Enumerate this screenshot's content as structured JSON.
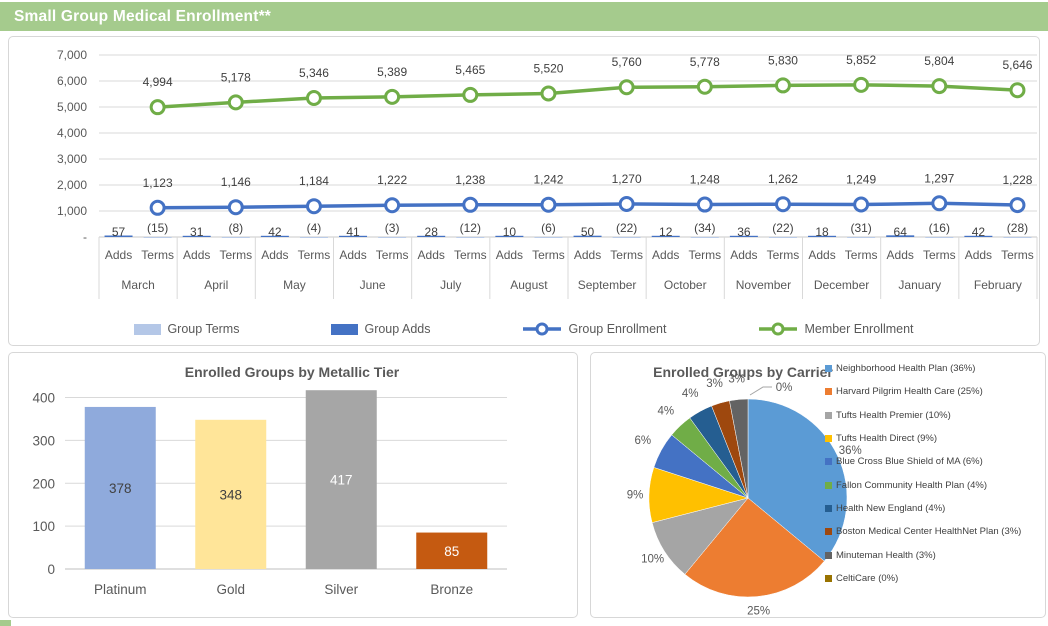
{
  "header": {
    "title": "Small Group Medical Enrollment**",
    "accent_color": "#A5CB8D"
  },
  "chart_data": [
    {
      "id": "enrollment",
      "type": "line+bar",
      "title": "",
      "categories": [
        "March",
        "April",
        "May",
        "June",
        "July",
        "August",
        "September",
        "October",
        "November",
        "December",
        "January",
        "February"
      ],
      "sub_categories": [
        "Adds",
        "Terms"
      ],
      "series": [
        {
          "name": "Group Terms",
          "type": "bar",
          "color": "#B4C7E7",
          "values": [
            -15,
            -8,
            -4,
            -3,
            -12,
            -6,
            -22,
            -34,
            -22,
            -31,
            -16,
            -28
          ],
          "labels": [
            "(15)",
            "(8)",
            "(4)",
            "(3)",
            "(12)",
            "(6)",
            "(22)",
            "(34)",
            "(22)",
            "(31)",
            "(16)",
            "(28)"
          ]
        },
        {
          "name": "Group Adds",
          "type": "bar",
          "color": "#4472C4",
          "values": [
            57,
            31,
            42,
            41,
            28,
            10,
            50,
            12,
            36,
            18,
            64,
            42
          ],
          "labels": [
            "57",
            "31",
            "42",
            "41",
            "28",
            "10",
            "50",
            "12",
            "36",
            "18",
            "64",
            "42"
          ]
        },
        {
          "name": "Group Enrollment",
          "type": "line",
          "color": "#4472C4",
          "values": [
            1123,
            1146,
            1184,
            1222,
            1238,
            1242,
            1270,
            1248,
            1262,
            1249,
            1297,
            1228
          ],
          "labels": [
            "1,123",
            "1,146",
            "1,184",
            "1,222",
            "1,238",
            "1,242",
            "1,270",
            "1,248",
            "1,262",
            "1,249",
            "1,297",
            "1,228"
          ]
        },
        {
          "name": "Member Enrollment",
          "type": "line",
          "color": "#70AD47",
          "values": [
            4994,
            5178,
            5346,
            5389,
            5465,
            5520,
            5760,
            5778,
            5830,
            5852,
            5804,
            5646
          ],
          "labels": [
            "4,994",
            "5,178",
            "5,346",
            "5,389",
            "5,465",
            "5,520",
            "5,760",
            "5,778",
            "5,830",
            "5,852",
            "5,804",
            "5,646"
          ]
        }
      ],
      "y_ticks": [
        {
          "value": 0,
          "label": "-"
        },
        {
          "value": 1000,
          "label": "1,000"
        },
        {
          "value": 2000,
          "label": "2,000"
        },
        {
          "value": 3000,
          "label": "3,000"
        },
        {
          "value": 4000,
          "label": "4,000"
        },
        {
          "value": 5000,
          "label": "5,000"
        },
        {
          "value": 6000,
          "label": "6,000"
        },
        {
          "value": 7000,
          "label": "7,000"
        }
      ],
      "ylim": [
        0,
        7000
      ],
      "grid": true,
      "legend_position": "bottom"
    },
    {
      "id": "tier",
      "type": "bar",
      "title": "Enrolled Groups by Metallic Tier",
      "categories": [
        "Platinum",
        "Gold",
        "Silver",
        "Bronze"
      ],
      "values": [
        378,
        348,
        417,
        85
      ],
      "labels": [
        "378",
        "348",
        "417",
        "85"
      ],
      "colors": [
        "#8FAADC",
        "#FFE599",
        "#A6A6A6",
        "#C55A11"
      ],
      "value_label_colors": [
        "#404040",
        "#404040",
        "#FFFFFF",
        "#FFFFFF"
      ],
      "y_ticks": [
        0,
        100,
        200,
        300,
        400
      ],
      "ylim": [
        0,
        400
      ],
      "grid": true,
      "xlabel": "",
      "ylabel": ""
    },
    {
      "id": "carrier",
      "type": "pie",
      "title": "Enrolled Groups by Carrier",
      "legend_position": "right",
      "slices": [
        {
          "label": "Neighborhood Health Plan (36%)",
          "pct": 36,
          "color": "#5B9BD5",
          "pie_label": "36%"
        },
        {
          "label": "Harvard Pilgrim Health Care (25%)",
          "pct": 25,
          "color": "#ED7D31",
          "pie_label": "25%"
        },
        {
          "label": "Tufts Health Premier (10%)",
          "pct": 10,
          "color": "#A5A5A5",
          "pie_label": "10%"
        },
        {
          "label": "Tufts Health Direct (9%)",
          "pct": 9,
          "color": "#FFC000",
          "pie_label": "9%"
        },
        {
          "label": "Blue Cross Blue Shield of MA (6%)",
          "pct": 6,
          "color": "#4472C4",
          "pie_label": "6%"
        },
        {
          "label": "Fallon Community Health Plan (4%)",
          "pct": 4,
          "color": "#70AD47",
          "pie_label": "4%"
        },
        {
          "label": "Health New England (4%)",
          "pct": 4,
          "color": "#255E91",
          "pie_label": "4%"
        },
        {
          "label": "Boston Medical Center HealthNet Plan (3%)",
          "pct": 3,
          "color": "#9E480E",
          "pie_label": "3%"
        },
        {
          "label": "Minuteman Health (3%)",
          "pct": 3,
          "color": "#636363",
          "pie_label": "3%"
        },
        {
          "label": "CeltiCare (0%)",
          "pct": 0,
          "color": "#997300",
          "pie_label": "0%"
        }
      ]
    }
  ]
}
